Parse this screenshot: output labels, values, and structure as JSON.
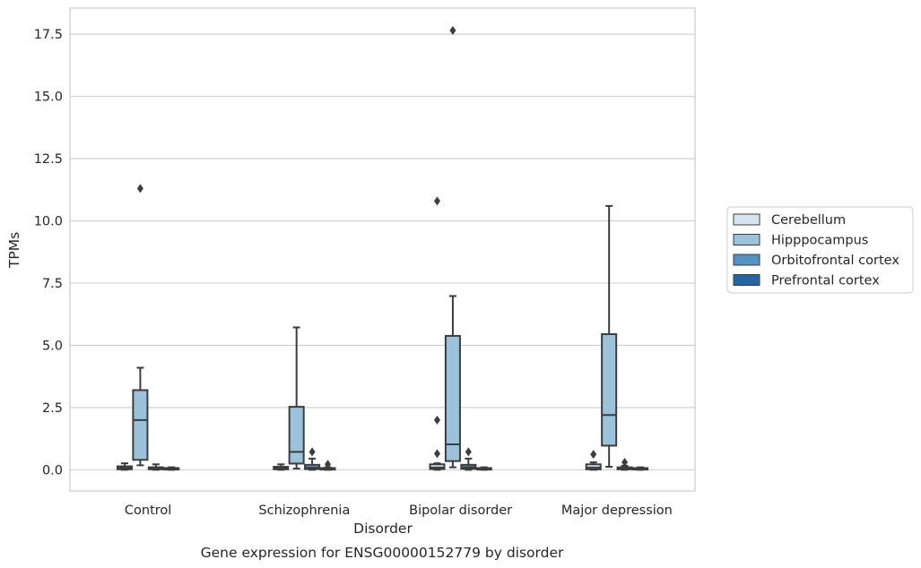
{
  "chart_data": {
    "type": "box",
    "title": "",
    "caption": "Gene expression for ENSG00000152779 by disorder",
    "xlabel": "Disorder",
    "ylabel": "TPMs",
    "ylim": [
      -0.85,
      18.55
    ],
    "yticks": [
      0.0,
      2.5,
      5.0,
      7.5,
      10.0,
      12.5,
      15.0,
      17.5
    ],
    "ytick_labels": [
      "0.0",
      "2.5",
      "5.0",
      "7.5",
      "10.0",
      "12.5",
      "15.0",
      "17.5"
    ],
    "grid": "horizontal",
    "legend_position": "right",
    "categories": [
      "Control",
      "Schizophrenia",
      "Bipolar disorder",
      "Major depression"
    ],
    "series": [
      {
        "name": "Cerebellum",
        "color": "#d6e5f2",
        "boxes": [
          {
            "whisker_low": 0.0,
            "q1": 0.02,
            "median": 0.08,
            "q3": 0.14,
            "whisker_high": 0.26,
            "outliers": []
          },
          {
            "whisker_low": 0.0,
            "q1": 0.02,
            "median": 0.07,
            "q3": 0.12,
            "whisker_high": 0.22,
            "outliers": []
          },
          {
            "whisker_low": 0.0,
            "q1": 0.03,
            "median": 0.09,
            "q3": 0.22,
            "whisker_high": 0.26,
            "outliers": [
              0.65,
              2.0,
              10.8
            ]
          },
          {
            "whisker_low": 0.0,
            "q1": 0.02,
            "median": 0.09,
            "q3": 0.22,
            "whisker_high": 0.3,
            "outliers": [
              0.62
            ]
          }
        ]
      },
      {
        "name": "Hipppocampus",
        "color": "#9ac2da",
        "boxes": [
          {
            "whisker_low": 0.18,
            "q1": 0.4,
            "median": 2.0,
            "q3": 3.2,
            "whisker_high": 4.1,
            "outliers": [
              11.3
            ]
          },
          {
            "whisker_low": 0.05,
            "q1": 0.25,
            "median": 0.72,
            "q3": 2.53,
            "whisker_high": 5.72,
            "outliers": []
          },
          {
            "whisker_low": 0.1,
            "q1": 0.35,
            "median": 1.02,
            "q3": 5.38,
            "whisker_high": 6.98,
            "outliers": [
              17.65
            ]
          },
          {
            "whisker_low": 0.12,
            "q1": 0.97,
            "median": 2.2,
            "q3": 5.45,
            "whisker_high": 10.6,
            "outliers": []
          }
        ]
      },
      {
        "name": "Orbitofrontal cortex",
        "color": "#5393c3",
        "boxes": [
          {
            "whisker_low": 0.0,
            "q1": 0.02,
            "median": 0.06,
            "q3": 0.1,
            "whisker_high": 0.22,
            "outliers": []
          },
          {
            "whisker_low": 0.0,
            "q1": 0.03,
            "median": 0.08,
            "q3": 0.2,
            "whisker_high": 0.45,
            "outliers": [
              0.72
            ]
          },
          {
            "whisker_low": 0.0,
            "q1": 0.04,
            "median": 0.1,
            "q3": 0.2,
            "whisker_high": 0.45,
            "outliers": [
              0.72
            ]
          },
          {
            "whisker_low": 0.0,
            "q1": 0.02,
            "median": 0.06,
            "q3": 0.1,
            "whisker_high": 0.16,
            "outliers": [
              0.3
            ]
          }
        ]
      },
      {
        "name": "Prefrontal cortex",
        "color": "#2465a8",
        "boxes": [
          {
            "whisker_low": 0.0,
            "q1": 0.01,
            "median": 0.04,
            "q3": 0.07,
            "whisker_high": 0.1,
            "outliers": []
          },
          {
            "whisker_low": 0.0,
            "q1": 0.01,
            "median": 0.04,
            "q3": 0.07,
            "whisker_high": 0.1,
            "outliers": [
              0.22
            ]
          },
          {
            "whisker_low": 0.0,
            "q1": 0.01,
            "median": 0.04,
            "q3": 0.07,
            "whisker_high": 0.1,
            "outliers": []
          },
          {
            "whisker_low": 0.0,
            "q1": 0.01,
            "median": 0.04,
            "q3": 0.07,
            "whisker_high": 0.1,
            "outliers": []
          }
        ]
      }
    ],
    "colors": {
      "edge": "#3d3d3d",
      "grid": "#cccccc",
      "spine": "#cccccc"
    }
  }
}
